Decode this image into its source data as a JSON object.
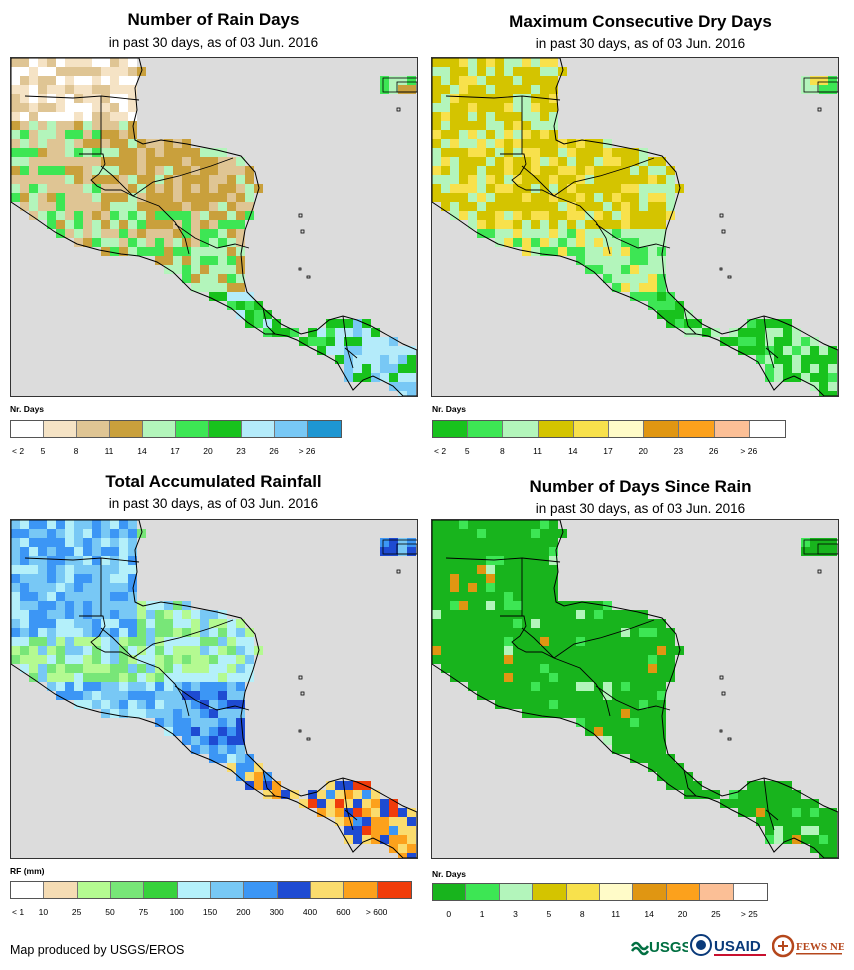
{
  "panels": [
    {
      "id": "rain-days",
      "title": "Number of Rain Days",
      "subtitle": "in past 30 days, as of 03 Jun. 2016",
      "legend_title": "Nr. Days",
      "palette": [
        "#ffffff",
        "#f5e3c5",
        "#dfc594",
        "#c9a03c",
        "#b3f5bb",
        "#3de654",
        "#18c21d",
        "#b4ebfa",
        "#78c8f5",
        "#1e96d2"
      ],
      "legend_labels": [
        "< 2",
        "5",
        "8",
        "11",
        "14",
        "17",
        "20",
        "23",
        "26",
        "> 26"
      ],
      "legend_label_mode": "edges"
    },
    {
      "id": "dry-days",
      "title": "Maximum Consecutive Dry Days",
      "subtitle": "in past 30 days, as of 03 Jun. 2016",
      "legend_title": "Nr. Days",
      "palette": [
        "#18c21d",
        "#3de654",
        "#b3f5bb",
        "#d4c400",
        "#f8e14c",
        "#fffbc8",
        "#e09612",
        "#fca11c",
        "#fbbf96",
        "#ffffff"
      ],
      "legend_labels": [
        "< 2",
        "5",
        "8",
        "11",
        "14",
        "17",
        "20",
        "23",
        "26",
        "> 26"
      ],
      "legend_label_mode": "edges"
    },
    {
      "id": "rainfall",
      "title": "Total Accumulated Rainfall",
      "subtitle": "in past 30 days, as of 03 Jun. 2016",
      "legend_title": "RF (mm)",
      "palette": [
        "#ffffff",
        "#f5dcb4",
        "#b4fa91",
        "#78e678",
        "#37d23c",
        "#b4f0fa",
        "#78c8f5",
        "#3c96f5",
        "#1e4bd2",
        "#fadc6e",
        "#fca11c",
        "#f03c0a"
      ],
      "legend_labels": [
        "< 1",
        "10",
        "25",
        "50",
        "75",
        "100",
        "150",
        "200",
        "300",
        "400",
        "600",
        "> 600"
      ],
      "legend_label_mode": "edges"
    },
    {
      "id": "days-since-rain",
      "title": "Number of Days Since Rain",
      "subtitle": "in past 30 days, as of 03 Jun. 2016",
      "legend_title": "Nr. Days",
      "palette": [
        "#18b41d",
        "#3de654",
        "#b3f5bb",
        "#d4c400",
        "#f8e14c",
        "#fffbc8",
        "#e09612",
        "#fca11c",
        "#fbbf96",
        "#ffffff"
      ],
      "legend_labels": [
        "0",
        "1",
        "3",
        "5",
        "8",
        "11",
        "14",
        "20",
        "25",
        "> 25"
      ],
      "legend_label_mode": "centers"
    }
  ],
  "footer": {
    "credit": "Map produced by USGS/EROS",
    "logos": [
      "USGS",
      "USAID",
      "FEWS NET"
    ]
  },
  "map_colors": {
    "ocean": "#dcdcdc",
    "border": "#000000"
  }
}
